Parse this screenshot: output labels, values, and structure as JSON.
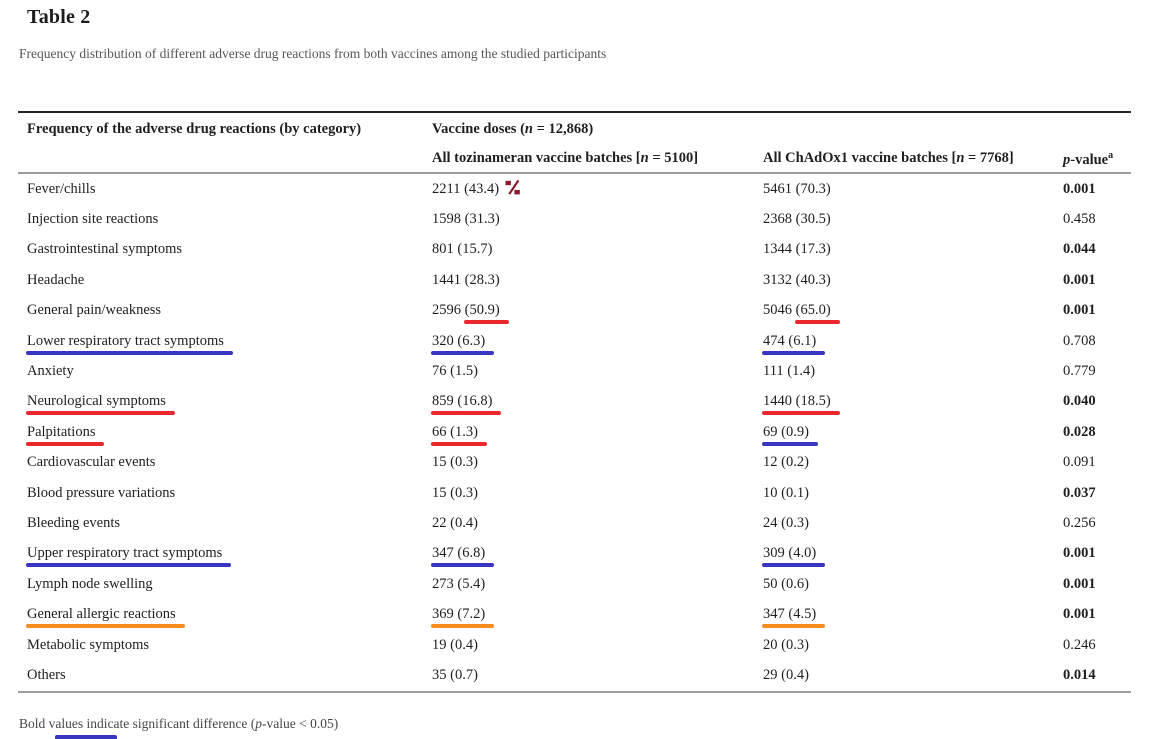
{
  "title": "Table 2",
  "caption": "Frequency distribution of different adverse drug reactions from both vaccines among the studied participants",
  "footnote": {
    "prefix": "Bold values indicate significant difference (",
    "p": "p",
    "suffix": "-value < 0.05)"
  },
  "colors": {
    "mark_red": "#e8282e",
    "mark_blue": "#3835c0",
    "mark_orange": "#f68b1f",
    "percent_icon_maroon": "#8c1a2b",
    "text": "#1f1f1f",
    "border_top": "#242424",
    "border_gray": "#9d9d9d"
  },
  "icons": {
    "percent": "percent-icon"
  },
  "table": {
    "col1_header": "Frequency of the adverse drug reactions (by category)",
    "group_header": {
      "prefix": "Vaccine doses (",
      "n": "n",
      "suffix": " = 12,868)"
    },
    "col2_header": {
      "prefix": "All tozinameran vaccine batches [",
      "n": "n",
      "suffix": " = 5100]"
    },
    "col3_header": {
      "prefix": "All ChAdOx1 vaccine batches [",
      "n": "n",
      "suffix": " = 7768]"
    },
    "col4_header": {
      "p": "p",
      "label": "-value",
      "sup": "a"
    },
    "rows": [
      {
        "label": "Fever/chills",
        "label_mark": null,
        "toz": {
          "text": "2211 (43.4)",
          "mark": null,
          "icon": "percent-icon"
        },
        "chad": {
          "text": "5461 (70.3)",
          "mark": null
        },
        "p": "0.001",
        "p_bold": true
      },
      {
        "label": "Injection site reactions",
        "label_mark": null,
        "toz": {
          "text": "1598 (31.3)",
          "mark": null
        },
        "chad": {
          "text": "2368 (30.5)",
          "mark": null
        },
        "p": "0.458",
        "p_bold": false
      },
      {
        "label": "Gastrointestinal symptoms",
        "label_mark": null,
        "toz": {
          "text": "801 (15.7)",
          "mark": null
        },
        "chad": {
          "text": "1344 (17.3)",
          "mark": null
        },
        "p": "0.044",
        "p_bold": true
      },
      {
        "label": "Headache",
        "label_mark": null,
        "toz": {
          "text": "1441 (28.3)",
          "mark": null
        },
        "chad": {
          "text": "3132 (40.3)",
          "mark": null
        },
        "p": "0.001",
        "p_bold": true
      },
      {
        "label": "General pain/weakness",
        "label_mark": null,
        "toz": {
          "pre": "2596 ",
          "marked": "(50.9)",
          "mark": "red"
        },
        "chad": {
          "pre": "5046 ",
          "marked": "(65.0)",
          "mark": "red"
        },
        "p": "0.001",
        "p_bold": true
      },
      {
        "label": "Lower respiratory tract symptoms",
        "label_mark": "blue",
        "toz": {
          "marked": "320 (6.3)",
          "mark": "blue"
        },
        "chad": {
          "marked": "474 (6.1)",
          "mark": "blue"
        },
        "p": "0.708",
        "p_bold": false
      },
      {
        "label": "Anxiety",
        "label_mark": null,
        "toz": {
          "text": "76 (1.5)",
          "mark": null
        },
        "chad": {
          "text": "111 (1.4)",
          "mark": null
        },
        "p": "0.779",
        "p_bold": false
      },
      {
        "label": "Neurological symptoms",
        "label_mark": "red",
        "toz": {
          "marked": "859 (16.8)",
          "mark": "red"
        },
        "chad": {
          "marked": "1440 (18.5)",
          "mark": "red"
        },
        "p": "0.040",
        "p_bold": true
      },
      {
        "label": "Palpitations",
        "label_mark": "red",
        "toz": {
          "marked": "66 (1.3)",
          "mark": "red"
        },
        "chad": {
          "marked": "69 (0.9)",
          "mark": "blue"
        },
        "p": "0.028",
        "p_bold": true
      },
      {
        "label": "Cardiovascular events",
        "label_mark": null,
        "toz": {
          "text": "15 (0.3)",
          "mark": null
        },
        "chad": {
          "text": "12 (0.2)",
          "mark": null
        },
        "p": "0.091",
        "p_bold": false
      },
      {
        "label": "Blood pressure variations",
        "label_mark": null,
        "toz": {
          "text": "15 (0.3)",
          "mark": null
        },
        "chad": {
          "text": "10 (0.1)",
          "mark": null
        },
        "p": "0.037",
        "p_bold": true
      },
      {
        "label": "Bleeding events",
        "label_mark": null,
        "toz": {
          "text": "22 (0.4)",
          "mark": null
        },
        "chad": {
          "text": "24 (0.3)",
          "mark": null
        },
        "p": "0.256",
        "p_bold": false
      },
      {
        "label": "Upper respiratory tract symptoms",
        "label_mark": "blue",
        "toz": {
          "marked": "347 (6.8)",
          "mark": "blue"
        },
        "chad": {
          "marked": "309 (4.0)",
          "mark": "blue"
        },
        "p": "0.001",
        "p_bold": true
      },
      {
        "label": "Lymph node swelling",
        "label_mark": null,
        "toz": {
          "text": "273 (5.4)",
          "mark": null
        },
        "chad": {
          "text": "50 (0.6)",
          "mark": null
        },
        "p": "0.001",
        "p_bold": true
      },
      {
        "label": "General allergic reactions",
        "label_mark": "orange",
        "toz": {
          "marked": "369 (7.2)",
          "mark": "orange"
        },
        "chad": {
          "marked": "347 (4.5)",
          "mark": "orange"
        },
        "p": "0.001",
        "p_bold": true
      },
      {
        "label": "Metabolic symptoms",
        "label_mark": null,
        "toz": {
          "text": "19 (0.4)",
          "mark": null
        },
        "chad": {
          "text": "20 (0.3)",
          "mark": null
        },
        "p": "0.246",
        "p_bold": false
      },
      {
        "label": "Others",
        "label_mark": null,
        "toz": {
          "text": "35 (0.7)",
          "mark": null
        },
        "chad": {
          "text": "29 (0.4)",
          "mark": null
        },
        "p": "0.014",
        "p_bold": true
      }
    ]
  }
}
